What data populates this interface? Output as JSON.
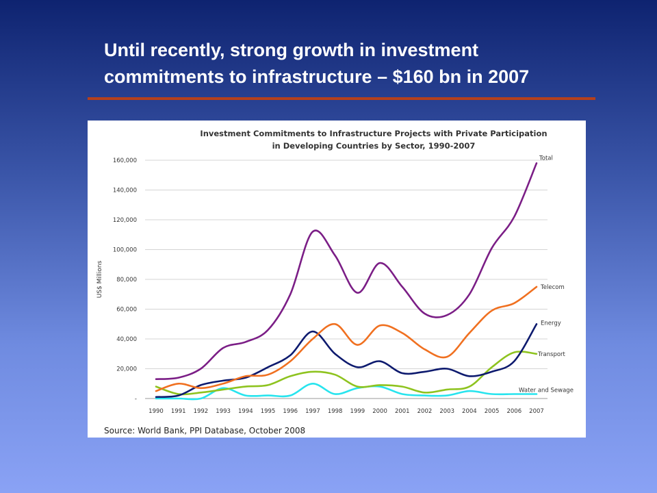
{
  "slide": {
    "title_line1": "Until recently, strong growth in investment",
    "title_line2": "commitments to infrastructure – $160 bn in 2007",
    "rule_color": "#b5401c"
  },
  "chart_data": {
    "type": "line",
    "title_line1": "Investment Commitments to Infrastructure Projects with Private Participation",
    "title_line2": "in Developing Countries by Sector, 1990-2007",
    "xlabel": "",
    "ylabel": "US$ Millions",
    "x": [
      1990,
      1991,
      1992,
      1993,
      1994,
      1995,
      1996,
      1997,
      1998,
      1999,
      2000,
      2001,
      2002,
      2003,
      2004,
      2005,
      2006,
      2007
    ],
    "x_tick_labels": [
      "1990",
      "1991",
      "1992",
      "1993",
      "1994",
      "1995",
      "1996",
      "1997",
      "1998",
      "1999",
      "2000",
      "2001",
      "2002",
      "2003",
      "2004",
      "2005",
      "2006",
      "2007"
    ],
    "ylim": [
      0,
      160000
    ],
    "y_ticks": [
      0,
      20000,
      40000,
      60000,
      80000,
      100000,
      120000,
      140000,
      160000
    ],
    "y_tick_labels": [
      "-",
      "20,000",
      "40,000",
      "60,000",
      "80,000",
      "100,000",
      "120,000",
      "140,000",
      "160,000"
    ],
    "grid": true,
    "legend": "inline labels at line ends",
    "series": [
      {
        "name": "Total",
        "color": "#7b1e86",
        "values": [
          13000,
          14000,
          20000,
          34000,
          38000,
          46000,
          70000,
          112000,
          96000,
          71000,
          91000,
          75000,
          57000,
          56000,
          70000,
          101000,
          122000,
          158000
        ]
      },
      {
        "name": "Telecom",
        "color": "#f07020",
        "values": [
          5000,
          10000,
          7000,
          10000,
          15000,
          16000,
          25000,
          40000,
          50000,
          36000,
          49000,
          44000,
          33000,
          28000,
          44000,
          59000,
          64000,
          75000
        ]
      },
      {
        "name": "Energy",
        "color": "#0d1a6e",
        "values": [
          1000,
          2000,
          9000,
          12000,
          14000,
          21000,
          29000,
          45000,
          30000,
          21000,
          25000,
          17000,
          18000,
          20000,
          15000,
          18000,
          25000,
          50000
        ]
      },
      {
        "name": "Transport",
        "color": "#8ec31f",
        "values": [
          8000,
          3000,
          4000,
          6000,
          8000,
          9000,
          15000,
          18000,
          16000,
          8000,
          9000,
          8000,
          4000,
          6000,
          8000,
          21000,
          31000,
          30000
        ]
      },
      {
        "name": "Water and Sewage",
        "color": "#27e4ee",
        "values": [
          0,
          0,
          0,
          7000,
          2000,
          2000,
          2000,
          10000,
          3000,
          7000,
          8000,
          3000,
          2000,
          2000,
          5000,
          3000,
          3000,
          3000
        ]
      }
    ],
    "source": "Source:  World Bank, PPI Database, October 2008"
  }
}
